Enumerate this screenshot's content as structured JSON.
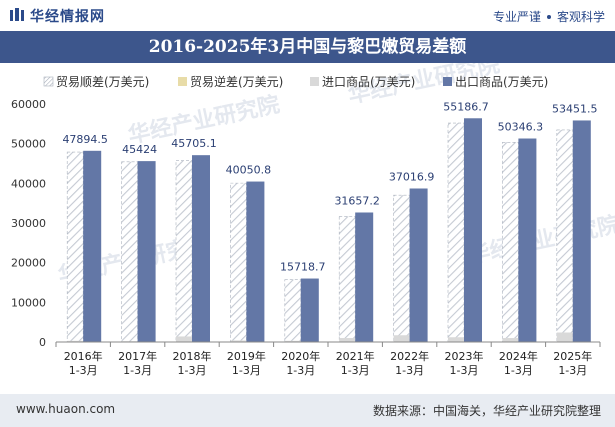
{
  "header": {
    "brand": "华经情报网",
    "slogan_left": "专业严谨",
    "slogan_right": "客观科学"
  },
  "title": "2016-2025年3月中国与黎巴嫩贸易差额",
  "footer": {
    "site": "www.huaon.com",
    "source": "数据来源：中国海关，华经产业研究院整理"
  },
  "watermark": "华经产业研究院",
  "colors": {
    "surplus_fill": "#ffffff",
    "surplus_hatch": "#c5cad3",
    "surplus_stroke": "#aab1bd",
    "deficit": "#e8dca8",
    "import": "#d9d9d9",
    "export": "#6377a6",
    "title_bg": "#3d568c"
  },
  "chart_data": {
    "type": "bar",
    "categories": [
      "2016年\n1-3月",
      "2017年\n1-3月",
      "2018年\n1-3月",
      "2019年\n1-3月",
      "2020年\n1-3月",
      "2021年\n1-3月",
      "2022年\n1-3月",
      "2023年\n1-3月",
      "2024年\n1-3月",
      "2025年\n1-3月"
    ],
    "series": [
      {
        "name": "贸易顺差(万美元)",
        "values": [
          47894.5,
          45424,
          45705.1,
          40050.8,
          15718.7,
          31657.2,
          37016.9,
          55186.7,
          50346.3,
          53451.5
        ]
      },
      {
        "name": "贸易逆差(万美元)",
        "values": [
          0,
          0,
          0,
          0,
          0,
          0,
          0,
          0,
          0,
          0
        ]
      },
      {
        "name": "进口商品(万美元)",
        "values": [
          300,
          200,
          1400,
          400,
          300,
          1000,
          1700,
          1200,
          1000,
          2400
        ]
      },
      {
        "name": "出口商品(万美元)",
        "values": [
          48200,
          45600,
          47100,
          40450,
          16000,
          32650,
          38700,
          56400,
          51300,
          55850
        ]
      }
    ],
    "data_labels": [
      "47894.5",
      "45424",
      "45705.1",
      "40050.8",
      "15718.7",
      "31657.2",
      "37016.9",
      "55186.7",
      "50346.3",
      "53451.5"
    ],
    "yticks": [
      "0",
      "10000",
      "20000",
      "30000",
      "40000",
      "50000",
      "60000"
    ],
    "ylim": [
      0,
      60000
    ],
    "legend_position": "top-left",
    "grid": false
  }
}
